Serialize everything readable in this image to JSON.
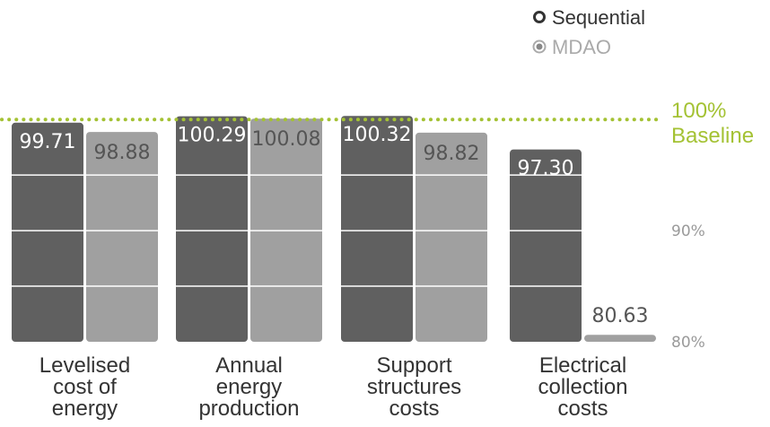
{
  "chart_data": {
    "type": "bar",
    "title": "",
    "xlabel": "",
    "ylabel": "",
    "categories": [
      [
        "Levelised",
        "cost of",
        "energy"
      ],
      [
        "Annual",
        "energy",
        "production"
      ],
      [
        "Support",
        "structures",
        "costs"
      ],
      [
        "Electrical",
        "collection",
        "costs"
      ]
    ],
    "series": [
      {
        "name": "Sequential",
        "values": [
          99.71,
          100.29,
          100.32,
          97.3
        ],
        "labels": [
          "99.71",
          "100.29",
          "100.32",
          "97.30"
        ],
        "color": "#606060"
      },
      {
        "name": "MDAO",
        "values": [
          98.88,
          100.08,
          98.82,
          80.63
        ],
        "labels": [
          "98.88",
          "100.08",
          "98.82",
          "80.63"
        ],
        "color": "#a0a0a0"
      }
    ],
    "ylim": [
      80,
      100.5
    ],
    "yticks": [
      {
        "value": 80,
        "label": "80%"
      },
      {
        "value": 90,
        "label": "90%"
      }
    ],
    "baseline": {
      "value": 100,
      "label_line1": "100%",
      "label_line2": "Baseline",
      "color": "#a4c234"
    },
    "legend": {
      "position": "top-right"
    },
    "grid": true
  }
}
